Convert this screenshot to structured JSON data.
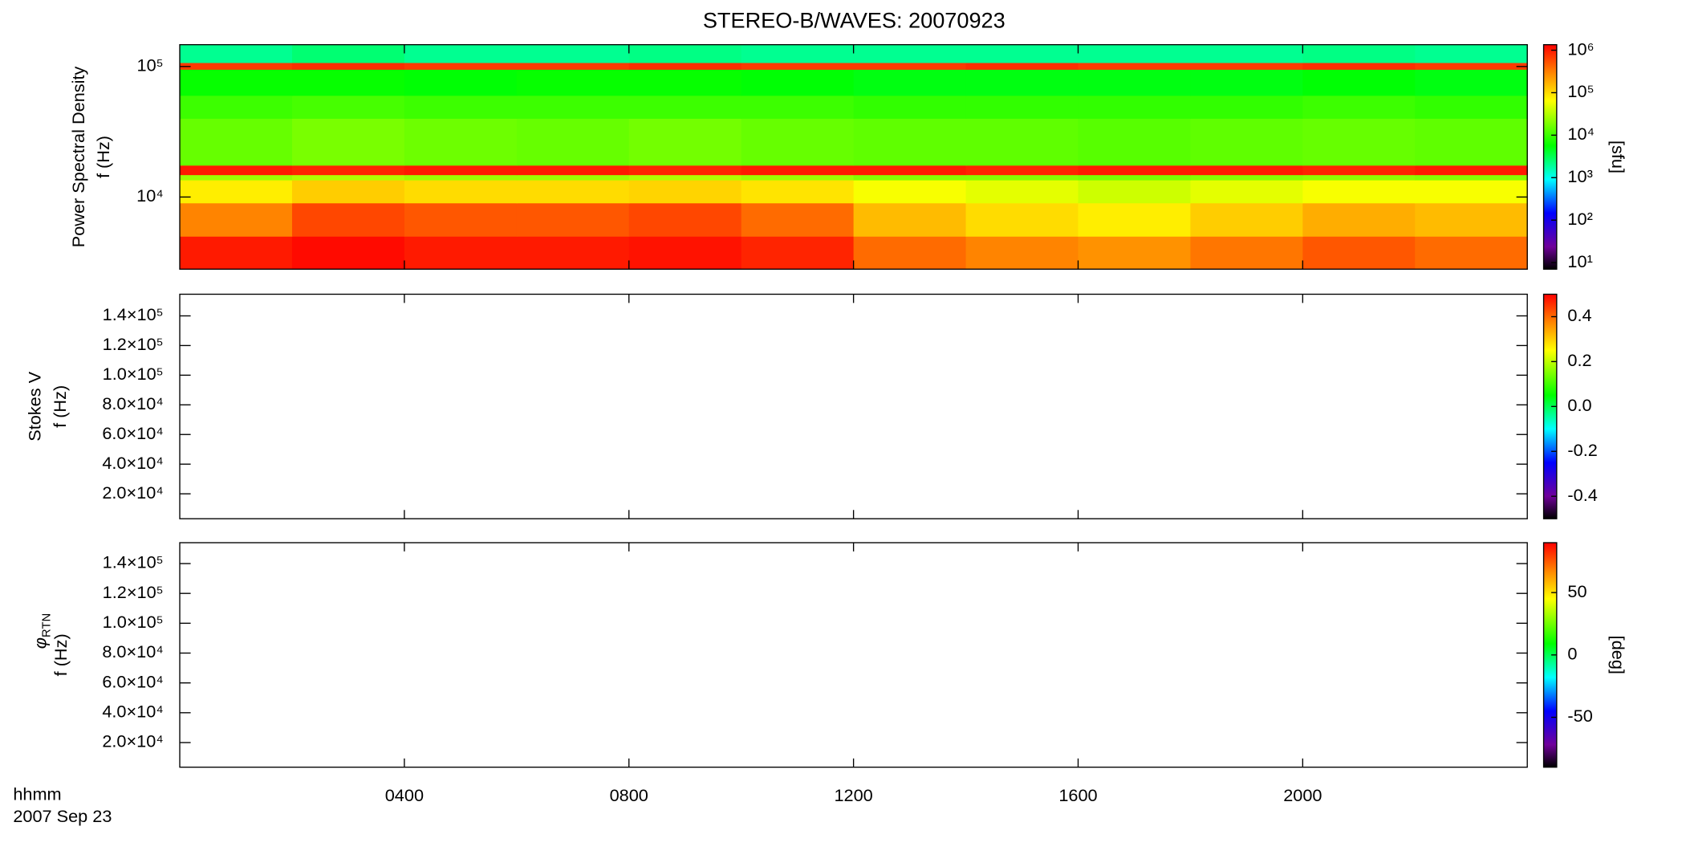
{
  "chart_data": [
    {
      "type": "heatmap",
      "title": "STEREO-B/WAVES: 20070923",
      "ylabel": [
        "Power Spectral Density",
        "f (Hz)"
      ],
      "ylog": true,
      "ylim": [
        2800,
        147000
      ],
      "yticks": [
        {
          "value": 10000,
          "label": "10⁴"
        },
        {
          "value": 100000,
          "label": "10⁵"
        }
      ],
      "xlim": [
        0,
        24
      ],
      "xticks": [
        4,
        8,
        12,
        16,
        20
      ],
      "colormap": "rainbow",
      "x_bins": [
        0,
        2,
        4,
        6,
        8,
        10,
        12,
        14,
        16,
        18,
        20,
        22,
        24
      ],
      "y_bins": [
        2800,
        5000,
        9000,
        13500,
        14800,
        17500,
        40000,
        60000,
        95000,
        107000,
        147000
      ],
      "z": [
        [
          1000000,
          1200000,
          1000000,
          1000000,
          1100000,
          900000,
          400000,
          300000,
          250000,
          350000,
          500000,
          400000
        ],
        [
          300000,
          600000,
          500000,
          500000,
          600000,
          400000,
          150000,
          100000,
          80000,
          120000,
          180000,
          150000
        ],
        [
          80000,
          120000,
          100000,
          100000,
          110000,
          90000,
          60000,
          50000,
          40000,
          50000,
          60000,
          60000
        ],
        [
          25000,
          30000,
          25000,
          25000,
          30000,
          25000,
          20000,
          20000,
          18000,
          20000,
          22000,
          20000
        ],
        [
          1000000,
          900000,
          1000000,
          1000000,
          900000,
          1000000,
          1000000,
          900000,
          1000000,
          1000000,
          900000,
          1000000
        ],
        [
          15000,
          18000,
          16000,
          15000,
          17000,
          15000,
          14000,
          14000,
          13000,
          14000,
          15000,
          14000
        ],
        [
          10000,
          11000,
          10000,
          10000,
          10000,
          10000,
          9000,
          9000,
          9000,
          9000,
          10000,
          9000
        ],
        [
          6000,
          6000,
          5500,
          6000,
          6000,
          5500,
          5000,
          5000,
          5000,
          5000,
          5500,
          5000
        ],
        [
          700000,
          800000,
          700000,
          700000,
          800000,
          700000,
          700000,
          800000,
          700000,
          700000,
          800000,
          700000
        ],
        [
          2000,
          2500,
          2000,
          2000,
          2200,
          2000,
          2000,
          2000,
          2000,
          2000,
          2200,
          2000
        ]
      ],
      "colorbar": {
        "log": true,
        "clim": [
          7,
          1350000
        ],
        "label": "[sfu]",
        "ticks": [
          {
            "value": 10,
            "label": "10¹"
          },
          {
            "value": 100,
            "label": "10²"
          },
          {
            "value": 1000,
            "label": "10³"
          },
          {
            "value": 10000,
            "label": "10⁴"
          },
          {
            "value": 100000,
            "label": "10⁵"
          },
          {
            "value": 1000000,
            "label": "10⁶"
          }
        ]
      }
    },
    {
      "type": "heatmap",
      "ylabel": [
        "Stokes V",
        "f (Hz)"
      ],
      "ylim": [
        3200,
        154600
      ],
      "yticks": [
        {
          "value": 20000,
          "label": "2.0×10⁴"
        },
        {
          "value": 40000,
          "label": "4.0×10⁴"
        },
        {
          "value": 60000,
          "label": "6.0×10⁴"
        },
        {
          "value": 80000,
          "label": "8.0×10⁴"
        },
        {
          "value": 100000,
          "label": "1.0×10⁵"
        },
        {
          "value": 120000,
          "label": "1.2×10⁵"
        },
        {
          "value": 140000,
          "label": "1.4×10⁵"
        }
      ],
      "xlim": [
        0,
        24
      ],
      "xticks": [
        4,
        8,
        12,
        16,
        20
      ],
      "colormap": "rainbow",
      "colorbar": {
        "clim": [
          -0.5,
          0.5
        ],
        "ticks": [
          -0.4,
          -0.2,
          {
            "value": 0,
            "label": "0.0"
          },
          0.2,
          0.4
        ]
      }
    },
    {
      "type": "heatmap",
      "ylabel_symbol": "φ",
      "ylabel_subscript": "RTN",
      "ylabel": [
        "f (Hz)"
      ],
      "ylim": [
        3500,
        154000
      ],
      "yticks": [
        {
          "value": 20000,
          "label": "2.0×10⁴"
        },
        {
          "value": 40000,
          "label": "4.0×10⁴"
        },
        {
          "value": 60000,
          "label": "6.0×10⁴"
        },
        {
          "value": 80000,
          "label": "8.0×10⁴"
        },
        {
          "value": 100000,
          "label": "1.0×10⁵"
        },
        {
          "value": 120000,
          "label": "1.2×10⁵"
        },
        {
          "value": 140000,
          "label": "1.4×10⁵"
        }
      ],
      "xlim": [
        0,
        24
      ],
      "xticks": [
        {
          "value": 4,
          "label": "0400"
        },
        {
          "value": 8,
          "label": "0800"
        },
        {
          "value": 12,
          "label": "1200"
        },
        {
          "value": 16,
          "label": "1600"
        },
        {
          "value": 20,
          "label": "2000"
        }
      ],
      "xlabel": "hhmm",
      "date_label": "2007 Sep 23",
      "colormap": "rainbow",
      "colorbar": {
        "clim": [
          -90,
          90
        ],
        "label": "[deg]",
        "ticks": [
          -50,
          0,
          50
        ]
      }
    }
  ]
}
